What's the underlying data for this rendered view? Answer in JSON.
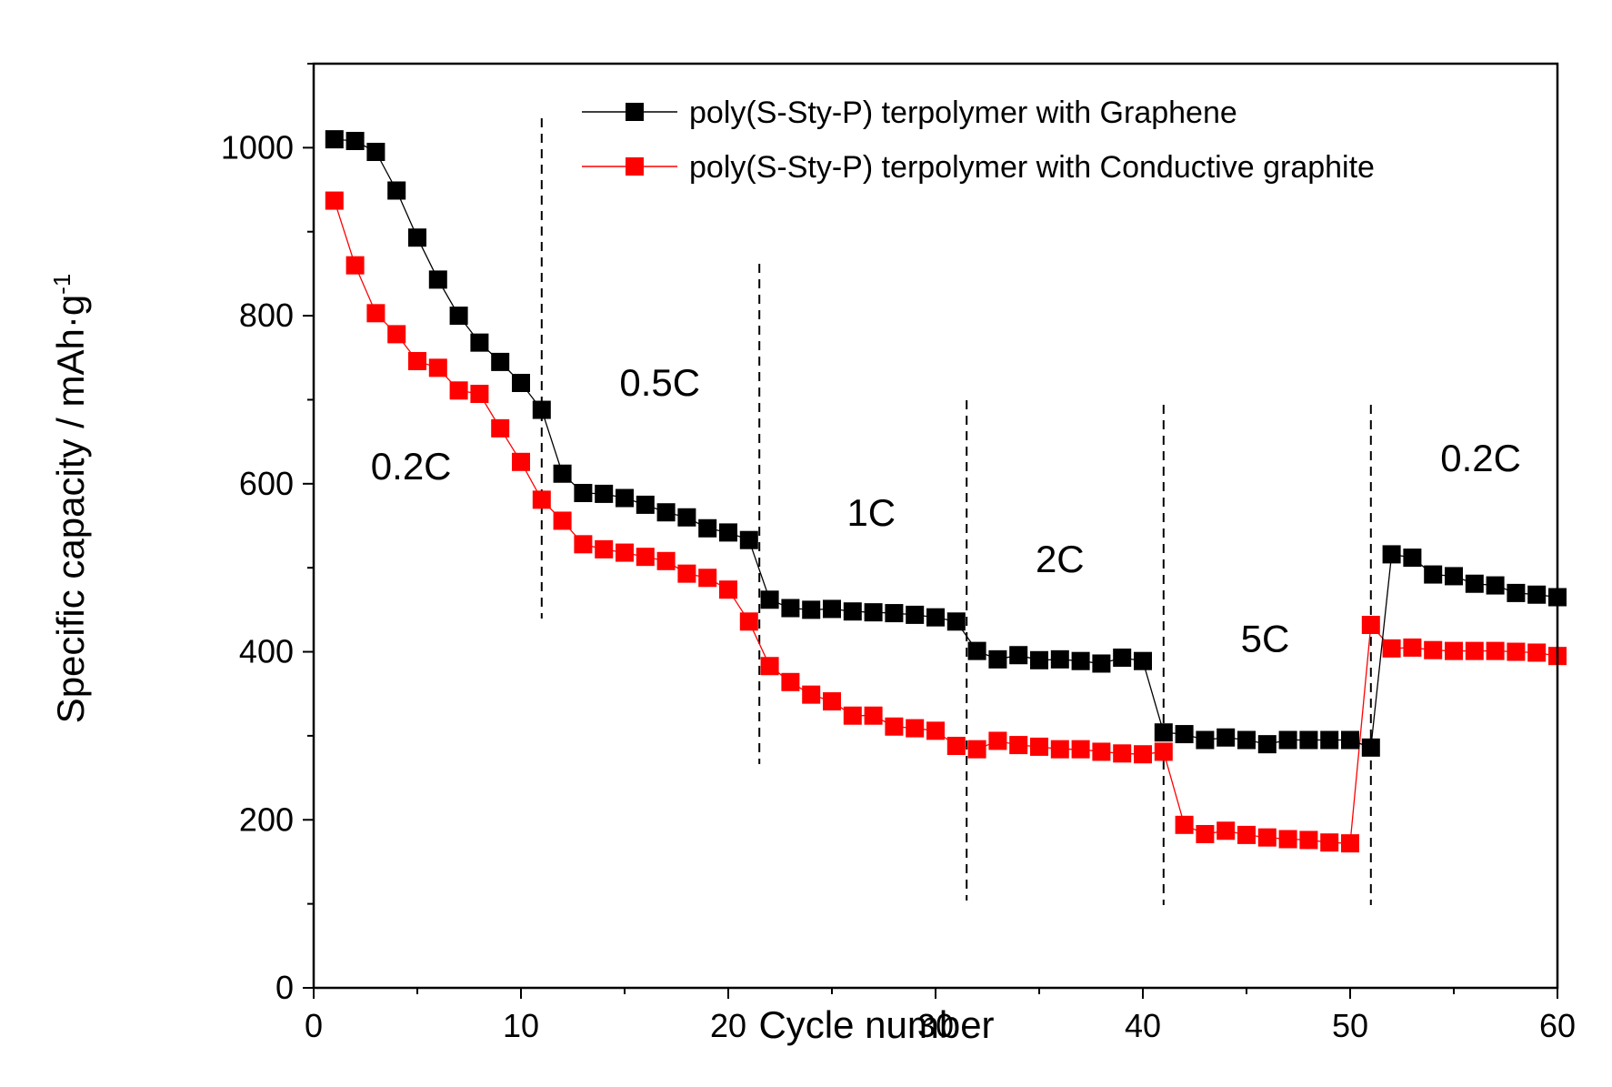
{
  "chart_data": {
    "type": "scatter",
    "xlabel": "Cycle number",
    "ylabel": "Specific capacity / mAh·g",
    "ylabel_superscript": "-1",
    "xlim": [
      0,
      60
    ],
    "ylim": [
      0,
      1100
    ],
    "x_ticks": [
      "0",
      "10",
      "20",
      "30",
      "40",
      "50",
      "60"
    ],
    "y_ticks": [
      "0",
      "200",
      "400",
      "600",
      "800",
      "1000"
    ],
    "grid": false,
    "legend_position": "top-center",
    "series": [
      {
        "name": "poly(S-Sty-P) terpolymer with Graphene",
        "color": "#000000",
        "x": [
          1,
          2,
          3,
          4,
          5,
          6,
          7,
          8,
          9,
          10,
          11,
          12,
          13,
          14,
          15,
          16,
          17,
          18,
          19,
          20,
          21,
          22,
          23,
          24,
          25,
          26,
          27,
          28,
          29,
          30,
          31,
          32,
          33,
          34,
          35,
          36,
          37,
          38,
          39,
          40,
          41,
          42,
          43,
          44,
          45,
          46,
          47,
          48,
          49,
          50,
          51,
          52,
          53,
          54,
          55,
          56,
          57,
          58,
          59,
          60
        ],
        "values": [
          1010,
          1008,
          995,
          949,
          893,
          843,
          800,
          768,
          745,
          720,
          688,
          612,
          589,
          588,
          583,
          575,
          566,
          560,
          547,
          542,
          533,
          462,
          452,
          450,
          451,
          448,
          447,
          446,
          444,
          441,
          436,
          401,
          391,
          396,
          390,
          391,
          389,
          386,
          393,
          389,
          304,
          302,
          295,
          298,
          295,
          290,
          295,
          295,
          295,
          295,
          286,
          516,
          512,
          492,
          490,
          481,
          479,
          470,
          468,
          465
        ]
      },
      {
        "name": "poly(S-Sty-P) terpolymer with Conductive graphite",
        "color": "#ff0000",
        "x": [
          1,
          2,
          3,
          4,
          5,
          6,
          7,
          8,
          9,
          10,
          11,
          12,
          13,
          14,
          15,
          16,
          17,
          18,
          19,
          20,
          21,
          22,
          23,
          24,
          25,
          26,
          27,
          28,
          29,
          30,
          31,
          32,
          33,
          34,
          35,
          36,
          37,
          38,
          39,
          40,
          41,
          42,
          43,
          44,
          45,
          46,
          47,
          48,
          49,
          50,
          51,
          52,
          53,
          54,
          55,
          56,
          57,
          58,
          59,
          60
        ],
        "values": [
          937,
          860,
          803,
          778,
          746,
          738,
          711,
          707,
          666,
          626,
          581,
          556,
          528,
          522,
          518,
          513,
          508,
          493,
          488,
          474,
          436,
          383,
          364,
          349,
          341,
          324,
          324,
          311,
          309,
          306,
          288,
          284,
          294,
          289,
          287,
          284,
          284,
          281,
          279,
          278,
          281,
          194,
          183,
          187,
          182,
          179,
          177,
          176,
          173,
          172,
          432,
          404,
          405,
          402,
          401,
          401,
          401,
          400,
          399,
          395
        ]
      }
    ],
    "region_dividers_x": [
      11,
      21.5,
      31.5,
      41,
      51
    ],
    "region_labels": [
      {
        "text": "0.2C",
        "x": 4.7,
        "y": 605
      },
      {
        "text": "0.5C",
        "x": 16.7,
        "y": 705
      },
      {
        "text": "1C",
        "x": 26.9,
        "y": 550
      },
      {
        "text": "2C",
        "x": 36,
        "y": 495
      },
      {
        "text": "5C",
        "x": 45.9,
        "y": 400
      },
      {
        "text": "0.2C",
        "x": 56.3,
        "y": 615
      }
    ]
  }
}
